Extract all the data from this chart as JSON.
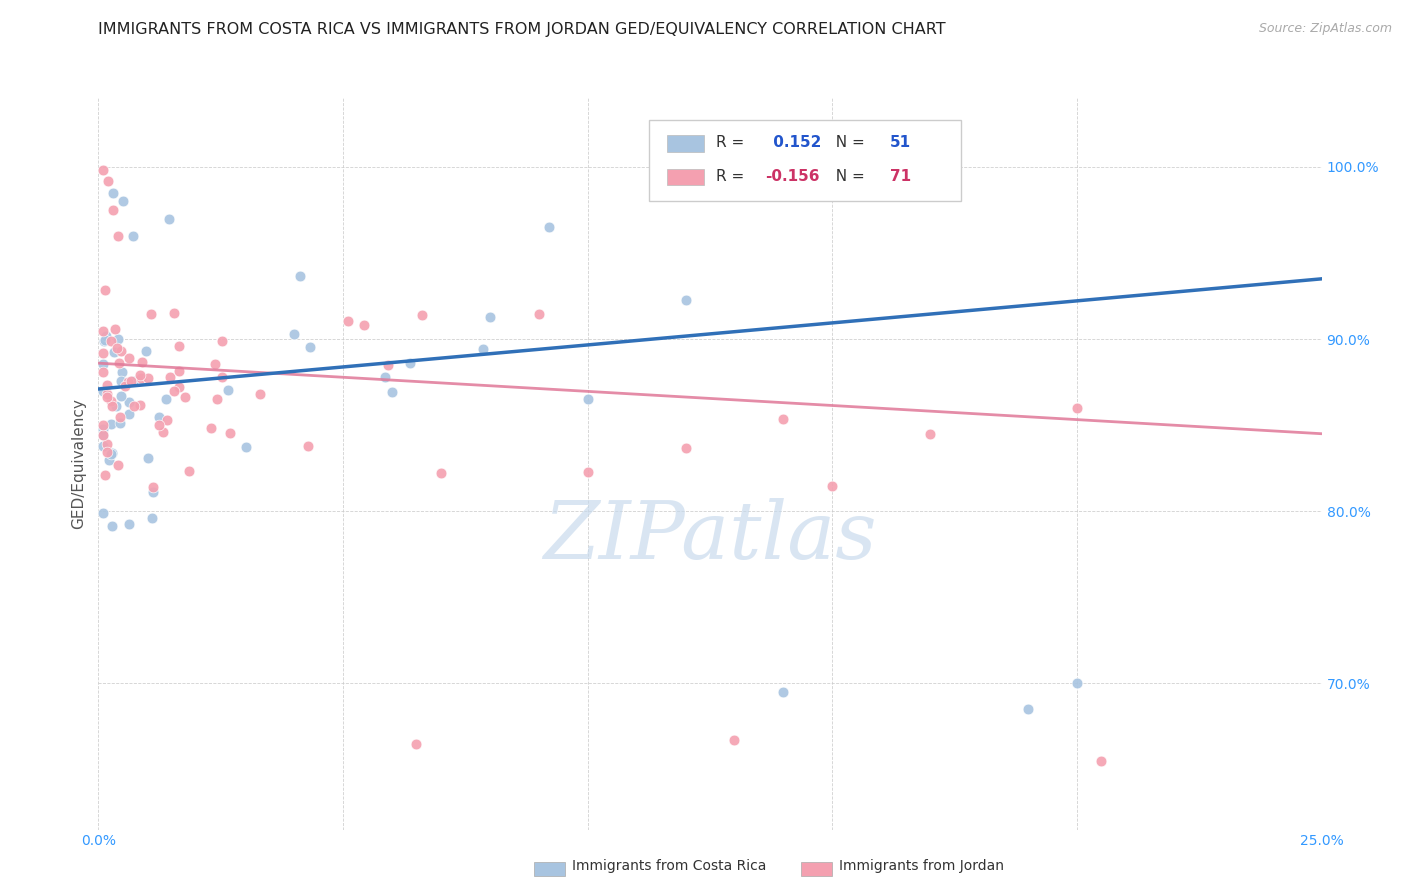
{
  "title": "IMMIGRANTS FROM COSTA RICA VS IMMIGRANTS FROM JORDAN GED/EQUIVALENCY CORRELATION CHART",
  "source": "Source: ZipAtlas.com",
  "ylabel": "GED/Equivalency",
  "yticks": [
    "100.0%",
    "90.0%",
    "80.0%",
    "70.0%"
  ],
  "ytick_vals": [
    1.0,
    0.9,
    0.8,
    0.7
  ],
  "xlim": [
    0.0,
    0.25
  ],
  "ylim": [
    0.615,
    1.04
  ],
  "xtick_vals": [
    0.0,
    0.05,
    0.1,
    0.15,
    0.2,
    0.25
  ],
  "xtick_labels": [
    "0.0%",
    "",
    "",
    "",
    "",
    "25.0%"
  ],
  "r_costa_rica": 0.152,
  "n_costa_rica": 51,
  "r_jordan": -0.156,
  "n_jordan": 71,
  "color_costa_rica": "#a8c4e0",
  "color_jordan": "#f4a0b0",
  "trendline_costa_rica_color": "#3070b8",
  "trendline_jordan_color": "#e07898",
  "watermark": "ZIPatlas",
  "legend_label_costa_rica": "Immigrants from Costa Rica",
  "legend_label_jordan": "Immigrants from Jordan",
  "cr_trend_x0": 0.0,
  "cr_trend_y0": 0.871,
  "cr_trend_x1": 0.25,
  "cr_trend_y1": 0.935,
  "jo_trend_x0": 0.0,
  "jo_trend_y0": 0.886,
  "jo_trend_x1": 0.25,
  "jo_trend_y1": 0.845
}
